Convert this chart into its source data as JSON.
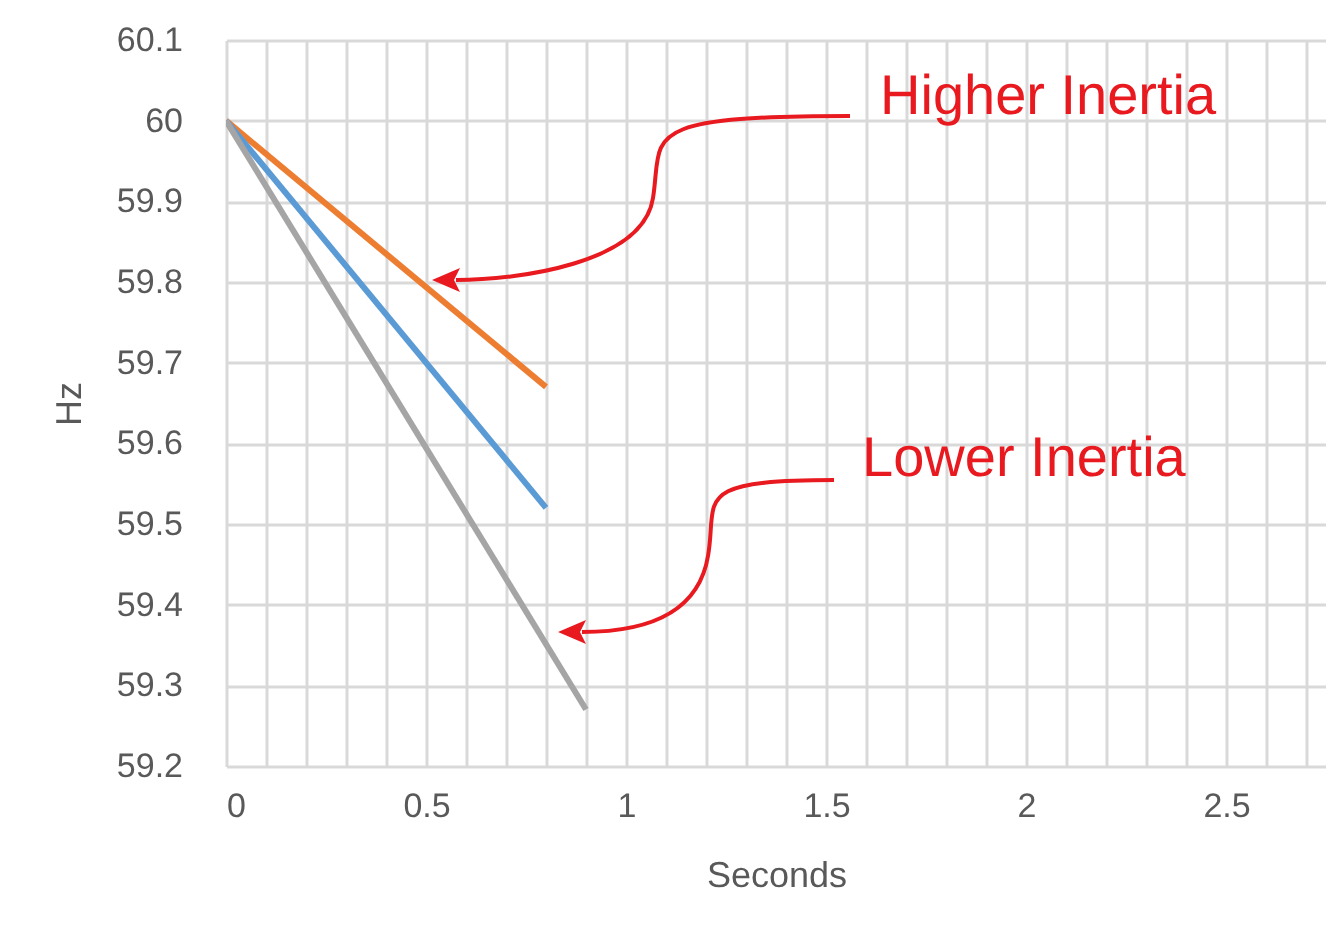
{
  "chart_data": {
    "type": "line",
    "xlabel": "Seconds",
    "ylabel": "Hz",
    "series": [
      {
        "color": "#ed7d31",
        "x": [
          0,
          0.8
        ],
        "values": [
          60,
          59.67
        ]
      },
      {
        "color": "#5b9bd5",
        "x": [
          0,
          0.8
        ],
        "values": [
          60,
          59.52
        ]
      },
      {
        "color": "#a5a5a5",
        "x": [
          0,
          0.9
        ],
        "values": [
          60,
          59.27
        ]
      }
    ],
    "xlim": [
      0,
      2.75
    ],
    "xticks": [
      0,
      {
        "value": 0.1,
        "label": null
      },
      {
        "value": 0.2,
        "label": null
      },
      {
        "value": 0.3,
        "label": null
      },
      {
        "value": 0.4,
        "label": null
      },
      0.5,
      {
        "value": 0.6,
        "label": null
      },
      {
        "value": 0.7,
        "label": null
      },
      {
        "value": 0.8,
        "label": null
      },
      {
        "value": 0.9,
        "label": null
      },
      1,
      {
        "value": 1.1,
        "label": null
      },
      {
        "value": 1.2,
        "label": null
      },
      {
        "value": 1.3,
        "label": null
      },
      {
        "value": 1.4,
        "label": null
      },
      1.5,
      {
        "value": 1.6,
        "label": null
      },
      {
        "value": 1.7,
        "label": null
      },
      {
        "value": 1.8,
        "label": null
      },
      {
        "value": 1.9,
        "label": null
      },
      2,
      {
        "value": 2.1,
        "label": null
      },
      {
        "value": 2.2,
        "label": null
      },
      {
        "value": 2.3,
        "label": null
      },
      {
        "value": 2.4,
        "label": null
      },
      2.5,
      {
        "value": 2.6,
        "label": null
      },
      {
        "value": 2.7,
        "label": null
      }
    ],
    "ylim": [
      59.2,
      60.1
    ],
    "yticks": [
      59.2,
      59.3,
      59.4,
      59.5,
      59.6,
      59.7,
      59.8,
      59.9,
      60,
      60.1
    ],
    "grid": true,
    "line_style": "solid",
    "annotations": [
      "Higher Inertia",
      "Lower Inertia"
    ]
  }
}
